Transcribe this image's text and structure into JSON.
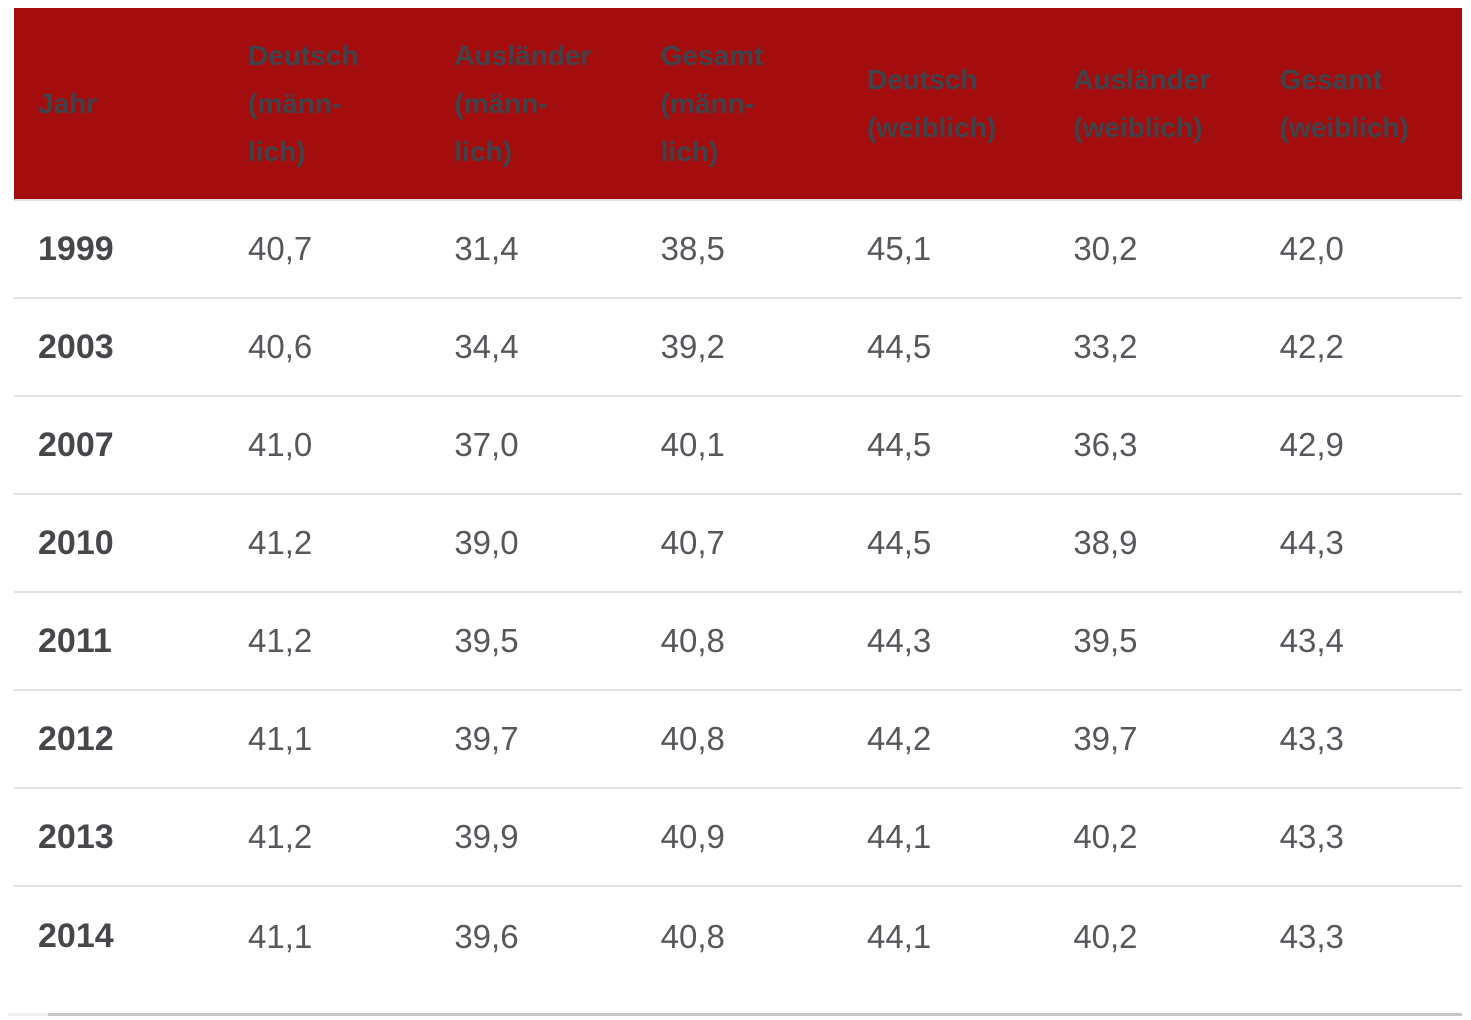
{
  "colors": {
    "header_bg": "#a30d0d",
    "header_text": "#3f444c",
    "year_text": "#46474b",
    "value_text": "#55575c",
    "row_border": "#e2e2e2",
    "cutoff_line_dark": "#c7c7c7",
    "cutoff_line_light": "#efefef"
  },
  "chart_data": {
    "type": "table",
    "title": "",
    "columns": [
      "Jahr",
      "Deutsch (männlich)",
      "Ausländer (männlich)",
      "Gesamt (männlich)",
      "Deutsch (weiblich)",
      "Ausländer (weiblich)",
      "Gesamt (weiblich)"
    ],
    "header_lines": [
      [
        "Jahr"
      ],
      [
        "Deutsch",
        "(männ-",
        "lich)"
      ],
      [
        "Ausländer",
        "(männ-",
        "lich)"
      ],
      [
        "Gesamt",
        "(männ-",
        "lich)"
      ],
      [
        "Deutsch",
        "(weiblich)"
      ],
      [
        "Ausländer",
        "(weiblich)"
      ],
      [
        "Gesamt",
        "(weiblich)"
      ]
    ],
    "rows": [
      [
        "1999",
        "40,7",
        "31,4",
        "38,5",
        "45,1",
        "30,2",
        "42,0"
      ],
      [
        "2003",
        "40,6",
        "34,4",
        "39,2",
        "44,5",
        "33,2",
        "42,2"
      ],
      [
        "2007",
        "41,0",
        "37,0",
        "40,1",
        "44,5",
        "36,3",
        "42,9"
      ],
      [
        "2010",
        "41,2",
        "39,0",
        "40,7",
        "44,5",
        "38,9",
        "44,3"
      ],
      [
        "2011",
        "41,2",
        "39,5",
        "40,8",
        "44,3",
        "39,5",
        "43,4"
      ],
      [
        "2012",
        "41,1",
        "39,7",
        "40,8",
        "44,2",
        "39,7",
        "43,3"
      ],
      [
        "2013",
        "41,2",
        "39,9",
        "40,9",
        "44,1",
        "40,2",
        "43,3"
      ],
      [
        "2014",
        "41,1",
        "39,6",
        "40,8",
        "44,1",
        "40,2",
        "43,3"
      ]
    ]
  }
}
